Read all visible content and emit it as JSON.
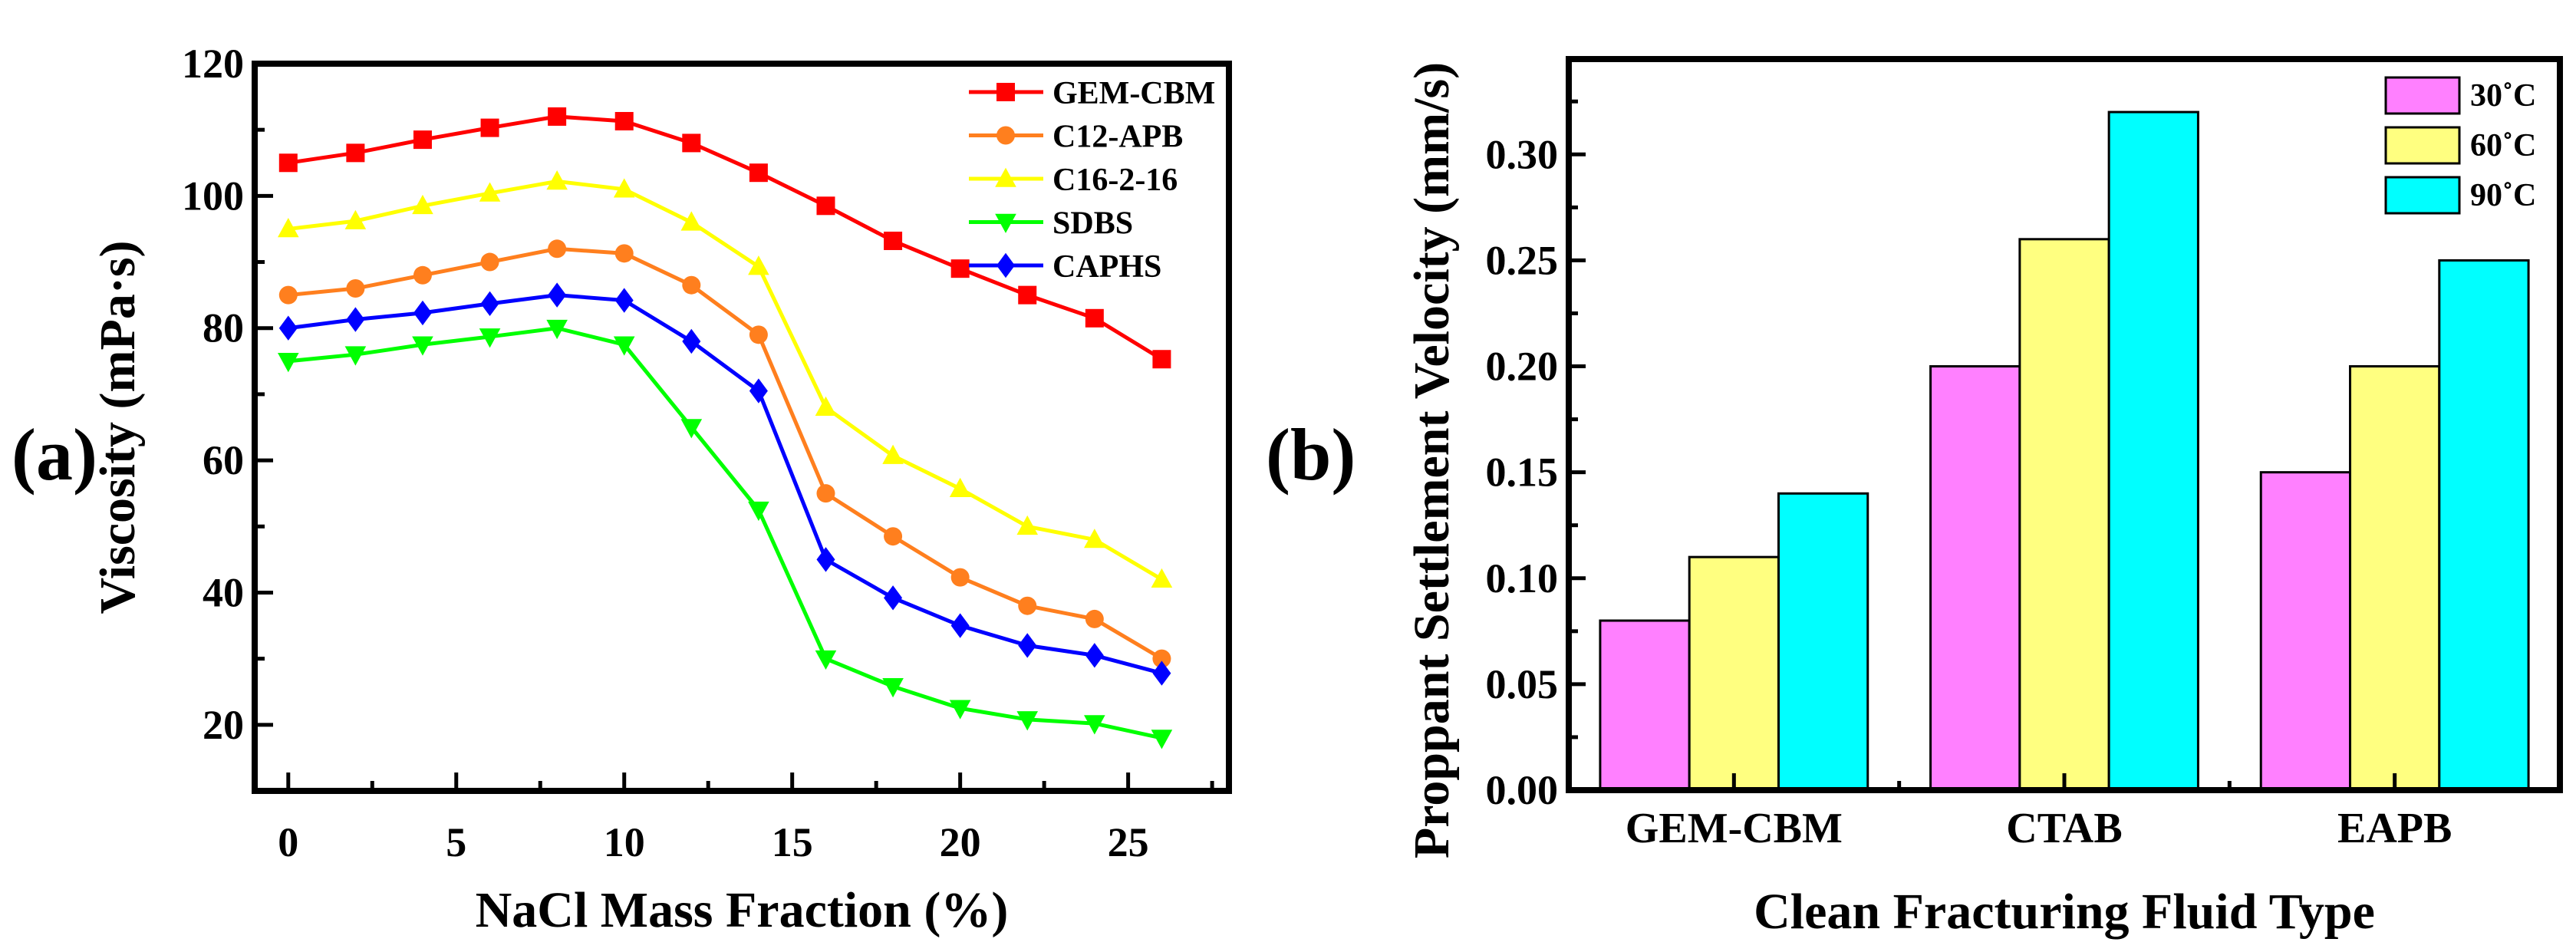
{
  "chart_data": [
    {
      "type": "line",
      "panel_label": "(a)",
      "title": "",
      "xlabel": "NaCl Mass Fraction (%)",
      "ylabel": "Viscosity (mPa·s)",
      "xlim": [
        -1,
        28
      ],
      "ylim": [
        10,
        120
      ],
      "xticks": [
        0,
        5,
        10,
        15,
        20,
        25
      ],
      "yticks": [
        20,
        40,
        60,
        80,
        100,
        120
      ],
      "grid": false,
      "legend_position": "top-right",
      "x": [
        0,
        2,
        4,
        6,
        8,
        10,
        12,
        14,
        16,
        18,
        20,
        22,
        24,
        26
      ],
      "series": [
        {
          "name": "GEM-CBM",
          "color": "#ff0000",
          "marker": "square",
          "values": [
            105,
            106.5,
            108.5,
            110.3,
            112,
            111.3,
            108,
            103.5,
            98.5,
            93.2,
            89,
            85,
            81.5,
            75.3
          ]
        },
        {
          "name": "C12-APB",
          "color": "#ff7f1e",
          "marker": "circle",
          "values": [
            85,
            86,
            88,
            90,
            92,
            91.3,
            86.5,
            79,
            55,
            48.5,
            42.3,
            38,
            36,
            30
          ]
        },
        {
          "name": "C16-2-16",
          "color": "#ffff00",
          "marker": "triangle-up",
          "values": [
            95,
            96.2,
            98.5,
            100.4,
            102.2,
            101,
            96,
            89.3,
            68,
            60.7,
            55.7,
            50,
            48,
            42
          ]
        },
        {
          "name": "SDBS",
          "color": "#00ff00",
          "marker": "triangle-down",
          "values": [
            75,
            76,
            77.5,
            78.7,
            80,
            77.5,
            65,
            52.5,
            30,
            25.8,
            22.5,
            20.8,
            20.2,
            18
          ]
        },
        {
          "name": "CAPHS",
          "color": "#0000ff",
          "marker": "diamond",
          "values": [
            80,
            81.3,
            82.3,
            83.7,
            85,
            84.2,
            78,
            70.5,
            45,
            39.2,
            35,
            32,
            30.5,
            27.8
          ]
        }
      ]
    },
    {
      "type": "bar",
      "panel_label": "(b)",
      "title": "",
      "xlabel": "Clean Fracturing Fluid Type",
      "ylabel": "Proppant Settlement Velocity (mm/s)",
      "ylim": [
        0,
        0.345
      ],
      "yticks": [
        "0.00",
        "0.05",
        "0.10",
        "0.15",
        "0.20",
        "0.25",
        "0.30"
      ],
      "grid": false,
      "legend_position": "top-right",
      "categories": [
        "GEM-CBM",
        "CTAB",
        "EAPB"
      ],
      "series": [
        {
          "name": "30˚C",
          "color": "#ff80ff",
          "values": [
            0.08,
            0.2,
            0.15
          ]
        },
        {
          "name": "60˚C",
          "color": "#ffff80",
          "values": [
            0.11,
            0.26,
            0.2
          ]
        },
        {
          "name": "90˚C",
          "color": "#00ffff",
          "values": [
            0.14,
            0.32,
            0.25
          ]
        }
      ]
    }
  ]
}
